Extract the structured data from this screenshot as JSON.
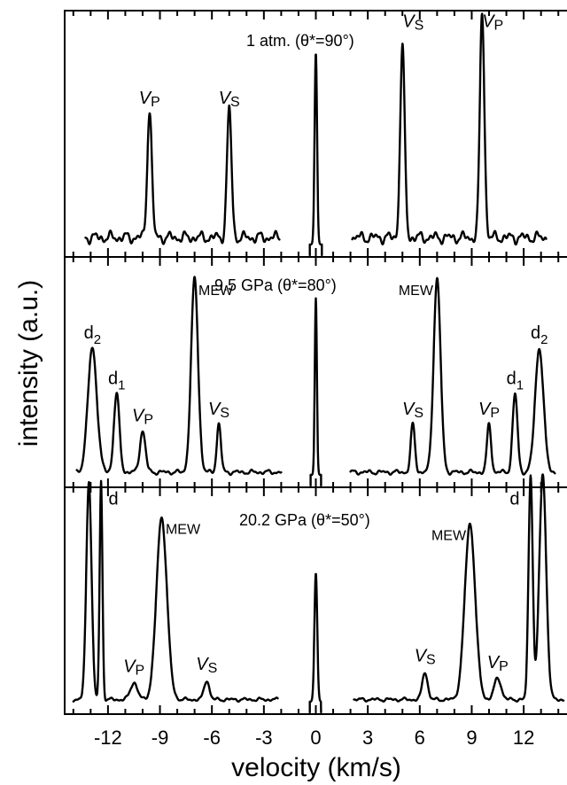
{
  "chart_data": {
    "type": "line",
    "xlabel": "velocity (km/s)",
    "ylabel": "intensity (a.u.)",
    "xlim": [
      -14.5,
      14.5
    ],
    "xticks": [
      {
        "value": -12,
        "label": "-12"
      },
      {
        "value": -9,
        "label": "-9"
      },
      {
        "value": -6,
        "label": "-6"
      },
      {
        "value": -3,
        "label": "-3"
      },
      {
        "value": 0,
        "label": "0"
      },
      {
        "value": 3,
        "label": "3"
      },
      {
        "value": 6,
        "label": "6"
      },
      {
        "value": 9,
        "label": "9"
      },
      {
        "value": 12,
        "label": "12"
      }
    ],
    "panels": [
      {
        "title": "1 atm. (θ*=90°)",
        "ylim": [
          0,
          1.0
        ],
        "noise": 0.06,
        "ranges": [
          [
            -13.3,
            -2.1
          ],
          [
            -0.35,
            0.35
          ],
          [
            2.1,
            13.3
          ]
        ],
        "peaks": [
          {
            "x": -9.6,
            "h": 0.55,
            "w": 0.13,
            "label": "VP"
          },
          {
            "x": -5.0,
            "h": 0.55,
            "w": 0.13,
            "label": "VS"
          },
          {
            "x": 0.0,
            "h": 0.82,
            "w": 0.07,
            "label": ""
          },
          {
            "x": 5.0,
            "h": 0.81,
            "w": 0.13,
            "label": "VS"
          },
          {
            "x": 9.6,
            "h": 0.96,
            "w": 0.13,
            "label": "VP"
          }
        ]
      },
      {
        "title": "9.5 GPa (θ*=80°)",
        "ylim": [
          0,
          1.0
        ],
        "noise": 0.025,
        "ranges": [
          [
            -13.8,
            -2.0
          ],
          [
            -0.3,
            0.3
          ],
          [
            2.0,
            13.8
          ]
        ],
        "peaks": [
          {
            "x": -12.9,
            "h": 0.57,
            "w": 0.26,
            "label": "d2"
          },
          {
            "x": -11.5,
            "h": 0.36,
            "w": 0.16,
            "label": "d1"
          },
          {
            "x": -10.0,
            "h": 0.19,
            "w": 0.16,
            "label": "VP"
          },
          {
            "x": -7.0,
            "h": 0.89,
            "w": 0.2,
            "label": "MEW"
          },
          {
            "x": -5.6,
            "h": 0.22,
            "w": 0.12,
            "label": "VS"
          },
          {
            "x": 0.0,
            "h": 0.81,
            "w": 0.06,
            "label": ""
          },
          {
            "x": 5.6,
            "h": 0.22,
            "w": 0.12,
            "label": "VS"
          },
          {
            "x": 7.0,
            "h": 0.89,
            "w": 0.2,
            "label": "MEW"
          },
          {
            "x": 10.0,
            "h": 0.22,
            "w": 0.12,
            "label": "VP"
          },
          {
            "x": 11.5,
            "h": 0.36,
            "w": 0.14,
            "label": "d1"
          },
          {
            "x": 12.9,
            "h": 0.57,
            "w": 0.24,
            "label": "d2"
          }
        ]
      },
      {
        "title": "20.2 GPa (θ*=50°)",
        "ylim": [
          0,
          1.0
        ],
        "noise": 0.02,
        "ranges": [
          [
            -14.0,
            -2.2
          ],
          [
            -0.35,
            0.3
          ],
          [
            2.2,
            14.3
          ]
        ],
        "peaks": [
          {
            "x": -13.1,
            "h": 1.02,
            "w": 0.15,
            "label": ""
          },
          {
            "x": -12.4,
            "h": 1.02,
            "w": 0.08,
            "label": "d"
          },
          {
            "x": -10.5,
            "h": 0.08,
            "w": 0.2,
            "label": "VP"
          },
          {
            "x": -8.9,
            "h": 0.85,
            "w": 0.3,
            "label": "MEW"
          },
          {
            "x": -6.3,
            "h": 0.09,
            "w": 0.15,
            "label": "VS"
          },
          {
            "x": 0.0,
            "h": 0.6,
            "w": 0.08,
            "label": ""
          },
          {
            "x": 6.3,
            "h": 0.13,
            "w": 0.15,
            "label": "VS"
          },
          {
            "x": 8.9,
            "h": 0.82,
            "w": 0.3,
            "label": "MEW"
          },
          {
            "x": 10.5,
            "h": 0.1,
            "w": 0.2,
            "label": "VP"
          },
          {
            "x": 12.4,
            "h": 1.05,
            "w": 0.12,
            "label": "d"
          },
          {
            "x": 13.1,
            "h": 1.05,
            "w": 0.2,
            "label": ""
          }
        ]
      }
    ]
  }
}
